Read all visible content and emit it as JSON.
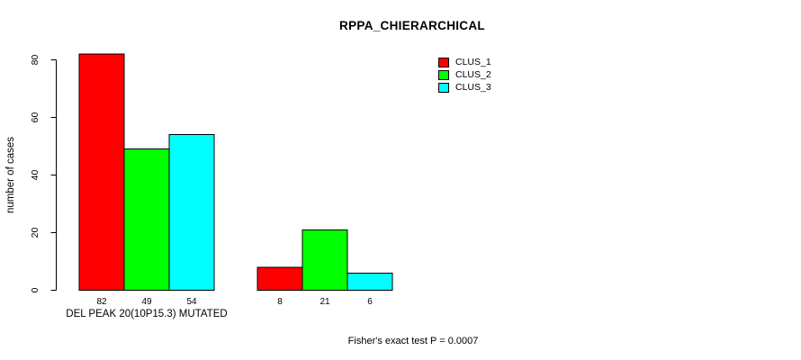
{
  "title": "RPPA_CHIERARCHICAL",
  "footer_note": "Fisher's exact test P = 0.0007",
  "legend": {
    "entries": [
      {
        "label": "CLUS_1",
        "color": "#FF0000"
      },
      {
        "label": "CLUS_2",
        "color": "#00FF00"
      },
      {
        "label": "CLUS_3",
        "color": "#00FFFF"
      }
    ]
  },
  "chart_data": {
    "type": "bar",
    "title": "RPPA_CHIERARCHICAL",
    "ylabel": "number of cases",
    "xlabel": "",
    "categories": [
      "DEL PEAK 20(10P15.3) MUTATED",
      ""
    ],
    "series": [
      {
        "name": "CLUS_1",
        "color": "#FF0000",
        "values": [
          82,
          8
        ]
      },
      {
        "name": "CLUS_2",
        "color": "#00FF00",
        "values": [
          49,
          21
        ]
      },
      {
        "name": "CLUS_3",
        "color": "#00FFFF",
        "values": [
          54,
          6
        ]
      }
    ],
    "bar_labels": [
      [
        "82",
        "49",
        "54"
      ],
      [
        "8",
        "21",
        "6"
      ]
    ],
    "yticks": [
      0,
      20,
      40,
      60,
      80
    ],
    "ylim": [
      0,
      82
    ],
    "grid": false,
    "bar_border_color": "#000000",
    "legend_position": "top-right",
    "annotation": "Fisher's exact test P = 0.0007"
  }
}
